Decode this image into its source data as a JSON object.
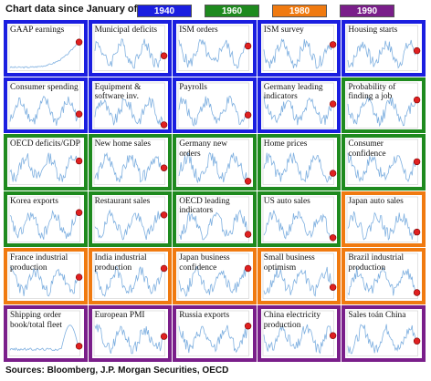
{
  "header": {
    "title": "Chart data since January of:",
    "legend": [
      {
        "label": "1940",
        "color": "#1a1ee0"
      },
      {
        "label": "1960",
        "color": "#1e8a1e"
      },
      {
        "label": "1980",
        "color": "#f07a10"
      },
      {
        "label": "1990",
        "color": "#7a1e8a"
      }
    ]
  },
  "source": "Sources: Bloomberg, J.P. Morgan Securities, OECD",
  "chart_data": {
    "type": "line",
    "layout": "small-multiples",
    "line_color": "#7fb0e0",
    "marker_color": "#e02020",
    "panels": [
      {
        "label": "GAAP earnings",
        "since": "1940",
        "shape": "exp"
      },
      {
        "label": "Municipal deficits",
        "since": "1940",
        "shape": "noise"
      },
      {
        "label": "ISM orders",
        "since": "1940",
        "shape": "noise"
      },
      {
        "label": "ISM survey",
        "since": "1940",
        "shape": "noise"
      },
      {
        "label": "Housing starts",
        "since": "1940",
        "shape": "noise"
      },
      {
        "label": "Consumer spending",
        "since": "1940",
        "shape": "noise"
      },
      {
        "label": "Equipment & software inv.",
        "since": "1940",
        "shape": "noise"
      },
      {
        "label": "Payrolls",
        "since": "1940",
        "shape": "noise"
      },
      {
        "label": "Germany leading indicators",
        "since": "1940",
        "shape": "noise"
      },
      {
        "label": "Probability of finding a job",
        "since": "1960",
        "shape": "noise"
      },
      {
        "label": "OECD deficits/GDP",
        "since": "1960",
        "shape": "noise"
      },
      {
        "label": "New home sales",
        "since": "1960",
        "shape": "noise"
      },
      {
        "label": "Germany new orders",
        "since": "1960",
        "shape": "noise"
      },
      {
        "label": "Home prices",
        "since": "1960",
        "shape": "noise"
      },
      {
        "label": "Consumer confidence",
        "since": "1960",
        "shape": "noise"
      },
      {
        "label": "Korea exports",
        "since": "1960",
        "shape": "noise"
      },
      {
        "label": "Restaurant sales",
        "since": "1960",
        "shape": "noise"
      },
      {
        "label": "OECD leading indicators",
        "since": "1960",
        "shape": "noise"
      },
      {
        "label": "US auto sales",
        "since": "1960",
        "shape": "noise"
      },
      {
        "label": "Japan auto sales",
        "since": "1980",
        "shape": "noise"
      },
      {
        "label": "France industrial production",
        "since": "1980",
        "shape": "noise"
      },
      {
        "label": "India industrial production",
        "since": "1980",
        "shape": "noise"
      },
      {
        "label": "Japan business confidence",
        "since": "1980",
        "shape": "noise"
      },
      {
        "label": "Small business optimism",
        "since": "1980",
        "shape": "noise"
      },
      {
        "label": "Brazil industrial production",
        "since": "1980",
        "shape": "noise"
      },
      {
        "label": "Shipping order book/total fleet",
        "since": "1990",
        "shape": "spike"
      },
      {
        "label": "European PMI",
        "since": "1990",
        "shape": "noise"
      },
      {
        "label": "Russia exports",
        "since": "1990",
        "shape": "noise"
      },
      {
        "label": "China electricity production",
        "since": "1990",
        "shape": "noise"
      },
      {
        "label": "Sales toán China",
        "since": "1990",
        "shape": "noise"
      }
    ]
  }
}
